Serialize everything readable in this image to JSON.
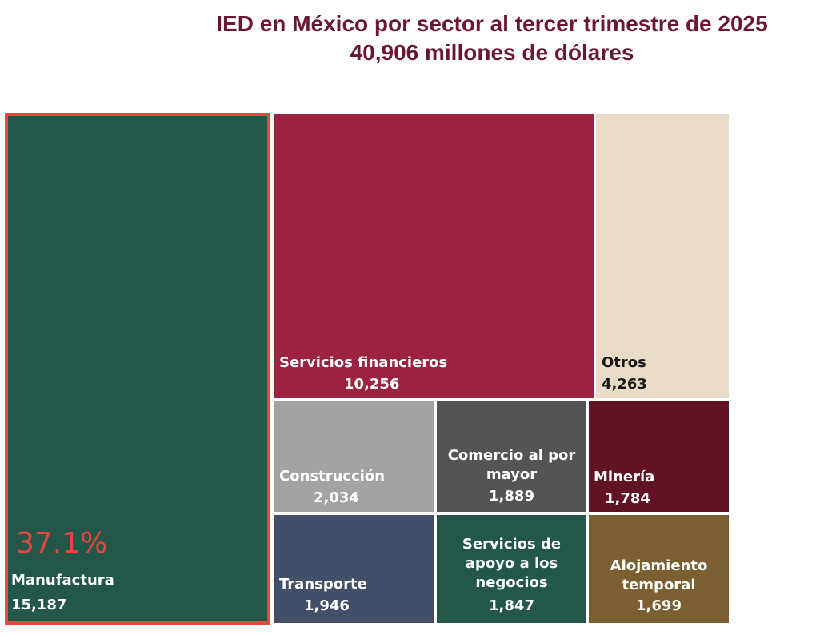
{
  "chart_title": "IED en México por sector al tercer trimestre de 2025",
  "chart_subtitle": "40,906 millones de dólares",
  "chart_data": {
    "type": "treemap",
    "title": "IED en México por sector al tercer trimestre de 2025",
    "subtitle": "40,906 millones de dólares",
    "total": 40906,
    "nodes": [
      {
        "label": "Manufactura",
        "value": 15187,
        "display_value": "15,187",
        "color": "#22574a",
        "text_color": "#ffffff"
      },
      {
        "label": "Servicios financieros",
        "value": 10256,
        "display_value": "10,256",
        "color": "#9b2240",
        "text_color": "#ffffff"
      },
      {
        "label": "Otros",
        "value": 4263,
        "display_value": "4,263",
        "color": "#e8dcc6",
        "text_color": "#1a1a1a"
      },
      {
        "label": "Construcción",
        "value": 2034,
        "display_value": "2,034",
        "color": "#a3a3a3",
        "text_color": "#ffffff"
      },
      {
        "label": "Comercio al por\nmayor",
        "value": 1889,
        "display_value": "1,889",
        "color": "#545454",
        "text_color": "#ffffff"
      },
      {
        "label": "Minería",
        "value": 1784,
        "display_value": "1,784",
        "color": "#611224",
        "text_color": "#ffffff"
      },
      {
        "label": "Transporte",
        "value": 1946,
        "display_value": "1,946",
        "color": "#434f68",
        "text_color": "#ffffff"
      },
      {
        "label": "Servicios de\napoyo a los\nnegocios",
        "value": 1847,
        "display_value": "1,847",
        "color": "#23574c",
        "text_color": "#ffffff"
      },
      {
        "label": "Alojamiento\ntemporal",
        "value": 1699,
        "display_value": "1,699",
        "color": "#7c5f31",
        "text_color": "#ffffff"
      }
    ],
    "annotations": [
      {
        "text": "37.1%",
        "target": "Manufactura",
        "color": "#e8463f"
      }
    ]
  }
}
